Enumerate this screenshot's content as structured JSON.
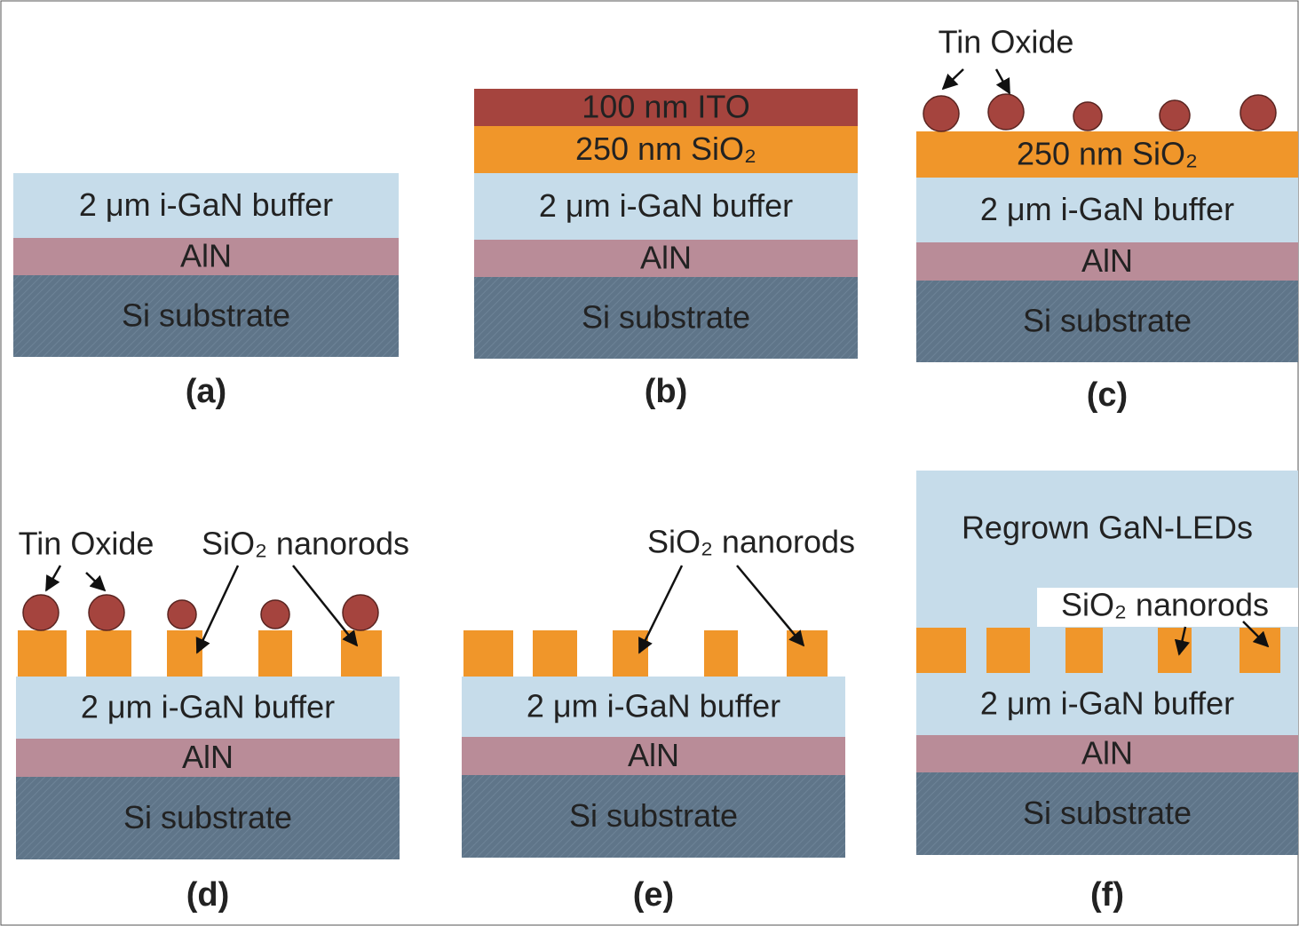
{
  "panels": [
    {
      "label": "(a)",
      "layers": [
        "2 μm i-GaN buffer",
        "AlN",
        "Si substrate"
      ]
    },
    {
      "label": "(b)",
      "layers": [
        "100 nm ITO",
        "250 nm SiO₂",
        "2 μm i-GaN buffer",
        "AlN",
        "Si substrate"
      ]
    },
    {
      "label": "(c)",
      "annotations": [
        "Tin Oxide"
      ],
      "layers": [
        "250 nm SiO₂",
        "2 μm i-GaN buffer",
        "AlN",
        "Si substrate"
      ]
    },
    {
      "label": "(d)",
      "annotations": [
        "Tin Oxide",
        "SiO₂ nanorods"
      ],
      "layers": [
        "2 μm i-GaN buffer",
        "AlN",
        "Si substrate"
      ]
    },
    {
      "label": "(e)",
      "annotations": [
        "SiO₂ nanorods"
      ],
      "layers": [
        "2 μm i-GaN buffer",
        "AlN",
        "Si substrate"
      ]
    },
    {
      "label": "(f)",
      "annotations": [
        "SiO₂ nanorods"
      ],
      "layers": [
        "Regrown GaN-LEDs",
        "2 μm i-GaN buffer",
        "AlN",
        "Si substrate"
      ]
    }
  ]
}
